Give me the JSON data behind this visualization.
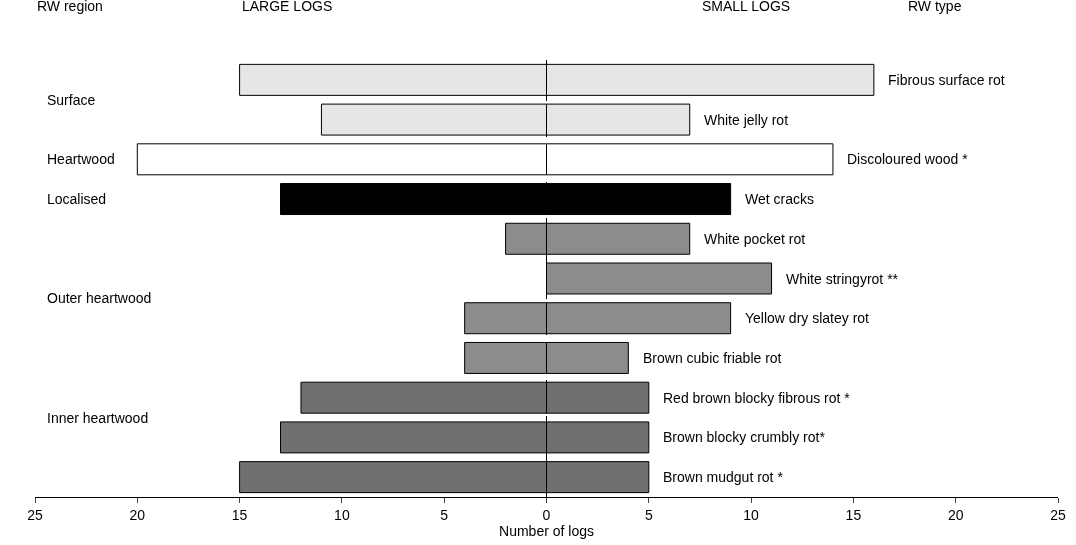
{
  "chart_data": {
    "type": "bar",
    "orientation": "horizontal",
    "stacked": true,
    "categories": [
      "Fibrous surface rot",
      "White jelly rot",
      "Discoloured wood *",
      "Wet cracks",
      "White pocket rot",
      "White stringyrot **",
      "Yellow dry slatey rot",
      "Brown cubic friable rot",
      "Red brown blocky fibrous rot *",
      "Brown blocky crumbly rot*",
      "Brown mudgut rot *"
    ],
    "series": [
      {
        "colors": [
          "#e6e6e6",
          "#e6e6e6",
          "#ffffff",
          "#000000",
          "#8c8c8c",
          "#8c8c8c",
          "#8c8c8c",
          "#8c8c8c",
          "#707070",
          "#707070",
          "#707070"
        ],
        "values": [
          -15,
          -11,
          -20,
          -13,
          -2,
          0,
          -4,
          -4,
          -12,
          -13,
          -15
        ]
      },
      {
        "colors": [
          "#e6e6e6",
          "#e6e6e6",
          "#ffffff",
          "#000000",
          "#8c8c8c",
          "#8c8c8c",
          "#8c8c8c",
          "#8c8c8c",
          "#707070",
          "#707070",
          "#707070"
        ],
        "values": [
          16,
          7,
          14,
          9,
          7,
          11,
          9,
          4,
          5,
          5,
          5
        ]
      }
    ],
    "xlabel": "Number of logs",
    "xlim": [
      -25,
      25
    ],
    "xticks": [
      {
        "value": -25,
        "label": "25"
      },
      {
        "value": -20,
        "label": "20"
      },
      {
        "value": -15,
        "label": "15"
      },
      {
        "value": -10,
        "label": "10"
      },
      {
        "value": -5,
        "label": "5"
      },
      0,
      5,
      10,
      15,
      20,
      25
    ],
    "annotations": [
      "RW region",
      "LARGE LOGS",
      "SMALL LOGS",
      "RW type",
      "Surface",
      "Heartwood",
      "Localised",
      "Outer heartwood",
      "Inner heartwood"
    ],
    "ref_lines": [
      {
        "axis": "x",
        "value": 0,
        "line_style": "dashed"
      }
    ],
    "grid": false,
    "legend": false
  }
}
